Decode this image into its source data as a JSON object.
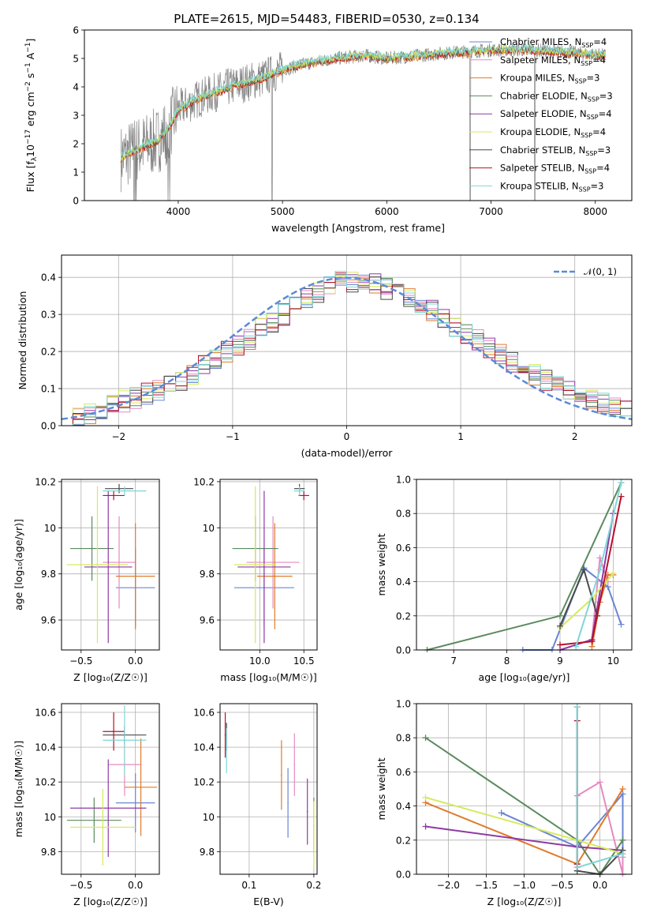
{
  "figure": {
    "title": "PLATE=2615, MJD=54483, FIBERID=0530, z=0.134"
  },
  "colors": {
    "Chabrier MILES": "#6a86d4",
    "Salpeter MILES": "#e58ac0",
    "Kroupa MILES": "#e07a2c",
    "Chabrier ELODIE": "#5b8a5e",
    "Salpeter ELODIE": "#8e3aa5",
    "Kroupa ELODIE": "#d6ea5a",
    "Chabrier STELIB": "#4a4a4a",
    "Salpeter STELIB": "#b5122b",
    "Kroupa STELIB": "#7fd6d8"
  },
  "chart_data": [
    {
      "id": "spectrum",
      "type": "line",
      "title": "PLATE=2615, MJD=54483, FIBERID=0530, z=0.134",
      "xlabel": "wavelength [Angstrom, rest frame]",
      "ylabel_parts": [
        "Flux [f",
        "λ",
        "10",
        "−17",
        " erg cm",
        "−2",
        " s",
        "−1",
        " A",
        "−1",
        "]"
      ],
      "xlim": [
        3100,
        8350
      ],
      "ylim": [
        0,
        6
      ],
      "xticks": [
        4000,
        5000,
        6000,
        7000,
        8000
      ],
      "yticks": [
        0,
        1,
        2,
        3,
        4,
        5,
        6
      ],
      "grid": false,
      "legend_position": "top-right",
      "legend": [
        {
          "name": "Chabrier MILES",
          "n": "4"
        },
        {
          "name": "Salpeter MILES",
          "n": "4"
        },
        {
          "name": "Kroupa MILES",
          "n": "3"
        },
        {
          "name": "Chabrier ELODIE",
          "n": "3"
        },
        {
          "name": "Salpeter ELODIE",
          "n": "4"
        },
        {
          "name": "Kroupa ELODIE",
          "n": "4"
        },
        {
          "name": "Chabrier STELIB",
          "n": "3"
        },
        {
          "name": "Salpeter STELIB",
          "n": "4"
        },
        {
          "name": "Kroupa STELIB",
          "n": "3"
        }
      ],
      "legend_nssp": "N",
      "legend_nssp_sub": "SSP",
      "data_envelope": {
        "x": [
          3450,
          3600,
          3800,
          3900,
          4000,
          4200,
          4500,
          4800,
          5000,
          5200,
          5500,
          5800,
          6000,
          6300,
          6600,
          7000,
          7400,
          7800,
          8100
        ],
        "y": [
          1.5,
          1.8,
          2.1,
          2.5,
          3.2,
          3.6,
          4.0,
          4.3,
          4.6,
          4.8,
          5.0,
          5.1,
          5.0,
          5.1,
          5.2,
          5.3,
          5.3,
          5.2,
          5.1
        ]
      }
    },
    {
      "id": "residuals",
      "type": "histogram",
      "xlabel": "(data-model)/error",
      "ylabel": "Normed distribution",
      "xlim": [
        -2.5,
        2.5
      ],
      "ylim": [
        0,
        0.46
      ],
      "xticks": [
        -2,
        -1,
        0,
        1,
        2
      ],
      "xtick_labels": [
        "−2",
        "−1",
        "0",
        "1",
        "2"
      ],
      "yticks": [
        0.0,
        0.1,
        0.2,
        0.3,
        0.4
      ],
      "ytick_labels": [
        "0.0",
        "0.1",
        "0.2",
        "0.3",
        "0.4"
      ],
      "grid": true,
      "bin_edges_start": -2.5,
      "bin_width": 0.1,
      "histogram_mean": [
        0.02,
        0.025,
        0.035,
        0.04,
        0.055,
        0.065,
        0.075,
        0.085,
        0.095,
        0.105,
        0.12,
        0.14,
        0.16,
        0.18,
        0.2,
        0.215,
        0.235,
        0.26,
        0.28,
        0.3,
        0.32,
        0.34,
        0.36,
        0.38,
        0.395,
        0.39,
        0.385,
        0.38,
        0.37,
        0.36,
        0.35,
        0.33,
        0.31,
        0.29,
        0.27,
        0.25,
        0.23,
        0.21,
        0.19,
        0.17,
        0.15,
        0.135,
        0.12,
        0.105,
        0.09,
        0.08,
        0.07,
        0.06,
        0.05,
        0.045
      ],
      "normal_curve_label": "𝒩(0, 1)",
      "normal_curve_color": "#5b8ad8"
    },
    {
      "id": "age-vs-Z",
      "type": "errorbar",
      "xlabel": "Z [log₁₀(Z/Z☉)]",
      "ylabel": "age  [log₁₀(age/yr)]",
      "xlim": [
        -0.68,
        0.22
      ],
      "ylim": [
        9.47,
        10.21
      ],
      "xticks": [
        -0.5,
        0.0
      ],
      "xtick_labels": [
        "−0.5",
        "0.0"
      ],
      "yticks": [
        9.6,
        9.8,
        10.0,
        10.2
      ],
      "grid": true,
      "points": [
        {
          "model": "Chabrier MILES",
          "x": 0.0,
          "y": 9.74,
          "xerr": 0.18,
          "yerr": 0.17
        },
        {
          "model": "Salpeter MILES",
          "x": -0.15,
          "y": 9.85,
          "xerr": 0.15,
          "yerr": 0.2
        },
        {
          "model": "Kroupa MILES",
          "x": 0.0,
          "y": 9.79,
          "xerr": 0.18,
          "yerr": 0.23
        },
        {
          "model": "Chabrier ELODIE",
          "x": -0.4,
          "y": 9.91,
          "xerr": 0.2,
          "yerr": 0.14
        },
        {
          "model": "Salpeter ELODIE",
          "x": -0.25,
          "y": 9.83,
          "xerr": 0.22,
          "yerr": 0.33
        },
        {
          "model": "Kroupa ELODIE",
          "x": -0.35,
          "y": 9.84,
          "xerr": 0.28,
          "yerr": 0.34
        },
        {
          "model": "Chabrier STELIB",
          "x": -0.15,
          "y": 10.17,
          "xerr": 0.13,
          "yerr": 0.02
        },
        {
          "model": "Salpeter STELIB",
          "x": -0.2,
          "y": 10.14,
          "xerr": 0.1,
          "yerr": 0.02
        },
        {
          "model": "Kroupa STELIB",
          "x": -0.1,
          "y": 10.16,
          "xerr": 0.2,
          "yerr": 0.02
        }
      ]
    },
    {
      "id": "age-vs-mass",
      "type": "errorbar",
      "xlabel": "mass [log₁₀(M/M☉)]",
      "xlim": [
        9.55,
        10.65
      ],
      "ylim": [
        9.47,
        10.21
      ],
      "xticks": [
        10.0,
        10.5
      ],
      "xtick_labels": [
        "10.0",
        "10.5"
      ],
      "yticks": [
        9.6,
        9.8,
        10.0,
        10.2
      ],
      "grid": true,
      "points": [
        {
          "model": "Chabrier MILES",
          "x": 10.05,
          "y": 9.74,
          "xerr": 0.34,
          "yerr": 0.17
        },
        {
          "model": "Salpeter MILES",
          "x": 10.15,
          "y": 9.85,
          "xerr": 0.3,
          "yerr": 0.2
        },
        {
          "model": "Kroupa MILES",
          "x": 10.17,
          "y": 9.79,
          "xerr": 0.2,
          "yerr": 0.23
        },
        {
          "model": "Chabrier ELODIE",
          "x": 9.95,
          "y": 9.91,
          "xerr": 0.26,
          "yerr": 0.14
        },
        {
          "model": "Salpeter ELODIE",
          "x": 10.05,
          "y": 9.83,
          "xerr": 0.3,
          "yerr": 0.33
        },
        {
          "model": "Kroupa ELODIE",
          "x": 9.95,
          "y": 9.84,
          "xerr": 0.24,
          "yerr": 0.34
        },
        {
          "model": "Chabrier STELIB",
          "x": 10.45,
          "y": 10.17,
          "xerr": 0.06,
          "yerr": 0.02
        },
        {
          "model": "Salpeter STELIB",
          "x": 10.5,
          "y": 10.14,
          "xerr": 0.06,
          "yerr": 0.02
        },
        {
          "model": "Kroupa STELIB",
          "x": 10.45,
          "y": 10.16,
          "xerr": 0.06,
          "yerr": 0.02
        }
      ]
    },
    {
      "id": "massweight-vs-age",
      "type": "line",
      "xlabel": "age  [log₁₀(age/yr)]",
      "ylabel": "mass weight",
      "xlim": [
        6.3,
        10.35
      ],
      "ylim": [
        0,
        1
      ],
      "xticks": [
        7,
        8,
        9,
        10
      ],
      "yticks": [
        0.0,
        0.2,
        0.4,
        0.6,
        0.8,
        1.0
      ],
      "ytick_labels": [
        "0.0",
        "0.2",
        "0.4",
        "0.6",
        "0.8",
        "1.0"
      ],
      "grid": true,
      "series": [
        {
          "model": "Chabrier MILES",
          "x": [
            8.3,
            8.85,
            9.45,
            9.9,
            10.15
          ],
          "y": [
            0.0,
            0.0,
            0.48,
            0.37,
            0.15
          ]
        },
        {
          "model": "Salpeter MILES",
          "x": [
            9.6,
            9.75,
            9.9
          ],
          "y": [
            0.06,
            0.54,
            0.4
          ]
        },
        {
          "model": "Kroupa MILES",
          "x": [
            9.6,
            9.75,
            9.9,
            10.0
          ],
          "y": [
            0.02,
            0.28,
            0.44,
            0.44
          ]
        },
        {
          "model": "Chabrier ELODIE",
          "x": [
            6.5,
            9.0,
            10.15
          ],
          "y": [
            0.0,
            0.2,
            0.98
          ]
        },
        {
          "model": "Salpeter ELODIE",
          "x": [
            9.0,
            9.6,
            10.0
          ],
          "y": [
            0.0,
            0.06,
            0.8
          ]
        },
        {
          "model": "Kroupa ELODIE",
          "x": [
            9.0,
            9.6,
            10.0
          ],
          "y": [
            0.13,
            0.3,
            0.45
          ]
        },
        {
          "model": "Chabrier STELIB",
          "x": [
            9.0,
            9.45,
            9.7
          ],
          "y": [
            0.14,
            0.47,
            0.2
          ]
        },
        {
          "model": "Salpeter STELIB",
          "x": [
            9.0,
            9.6,
            10.15
          ],
          "y": [
            0.03,
            0.05,
            0.9
          ]
        },
        {
          "model": "Kroupa STELIB",
          "x": [
            9.3,
            9.75,
            10.15
          ],
          "y": [
            0.02,
            0.47,
            0.98
          ]
        }
      ]
    },
    {
      "id": "mass-vs-Z",
      "type": "errorbar",
      "xlabel": "Z [log₁₀(Z/Z☉)]",
      "ylabel": "mass [log₁₀(M/M☉)]",
      "xlim": [
        -0.68,
        0.22
      ],
      "ylim": [
        9.67,
        10.65
      ],
      "xticks": [
        -0.5,
        0.0
      ],
      "xtick_labels": [
        "−0.5",
        "0.0"
      ],
      "yticks": [
        9.8,
        10.0,
        10.2,
        10.4,
        10.6
      ],
      "grid": true,
      "points": [
        {
          "model": "Chabrier MILES",
          "x": 0.0,
          "y": 10.08,
          "xerr": 0.18,
          "yerr": 0.17
        },
        {
          "model": "Salpeter MILES",
          "x": -0.1,
          "y": 10.3,
          "xerr": 0.15,
          "yerr": 0.18
        },
        {
          "model": "Kroupa MILES",
          "x": 0.05,
          "y": 10.17,
          "xerr": 0.15,
          "yerr": 0.28
        },
        {
          "model": "Chabrier ELODIE",
          "x": -0.38,
          "y": 9.98,
          "xerr": 0.25,
          "yerr": 0.13
        },
        {
          "model": "Salpeter ELODIE",
          "x": -0.25,
          "y": 10.05,
          "xerr": 0.35,
          "yerr": 0.28
        },
        {
          "model": "Kroupa ELODIE",
          "x": -0.3,
          "y": 9.94,
          "xerr": 0.3,
          "yerr": 0.22
        },
        {
          "model": "Chabrier STELIB",
          "x": -0.1,
          "y": 10.47,
          "xerr": 0.2,
          "yerr": 0.05
        },
        {
          "model": "Salpeter STELIB",
          "x": -0.2,
          "y": 10.49,
          "xerr": 0.1,
          "yerr": 0.11
        },
        {
          "model": "Kroupa STELIB",
          "x": -0.1,
          "y": 10.44,
          "xerr": 0.2,
          "yerr": 0.2
        }
      ]
    },
    {
      "id": "mass-vs-EBV",
      "type": "errorbar",
      "xlabel": "E(B-V)",
      "xlim": [
        0.055,
        0.205
      ],
      "ylim": [
        9.67,
        10.65
      ],
      "xticks": [
        0.1,
        0.2
      ],
      "xtick_labels": [
        "0.1",
        "0.2"
      ],
      "yticks": [
        9.8,
        10.0,
        10.2,
        10.4,
        10.6
      ],
      "grid": true,
      "points": [
        {
          "model": "Chabrier MILES",
          "x": 0.16,
          "y": 10.08,
          "xerr": 0.0,
          "yerr": 0.2
        },
        {
          "model": "Salpeter MILES",
          "x": 0.17,
          "y": 10.3,
          "xerr": 0.0,
          "yerr": 0.18
        },
        {
          "model": "Kroupa MILES",
          "x": 0.15,
          "y": 10.24,
          "xerr": 0.0,
          "yerr": 0.2
        },
        {
          "model": "Chabrier ELODIE",
          "x": 0.2,
          "y": 9.95,
          "xerr": 0.0,
          "yerr": 0.16
        },
        {
          "model": "Salpeter ELODIE",
          "x": 0.19,
          "y": 10.03,
          "xerr": 0.0,
          "yerr": 0.19
        },
        {
          "model": "Kroupa ELODIE",
          "x": 0.2,
          "y": 9.9,
          "xerr": 0.0,
          "yerr": 0.19
        },
        {
          "model": "Chabrier STELIB",
          "x": 0.065,
          "y": 10.46,
          "xerr": 0.0,
          "yerr": 0.08
        },
        {
          "model": "Salpeter STELIB",
          "x": 0.063,
          "y": 10.47,
          "xerr": 0.0,
          "yerr": 0.13
        },
        {
          "model": "Kroupa STELIB",
          "x": 0.065,
          "y": 10.38,
          "xerr": 0.0,
          "yerr": 0.13
        }
      ]
    },
    {
      "id": "massweight-vs-Z",
      "type": "line",
      "xlabel": "Z [log₁₀(Z/Z☉)]",
      "ylabel": "mass weight",
      "xlim": [
        -2.42,
        0.42
      ],
      "ylim": [
        0,
        1
      ],
      "xticks": [
        -2.0,
        -1.5,
        -1.0,
        -0.5,
        0.0
      ],
      "xtick_labels": [
        "−2.0",
        "−1.5",
        "−1.0",
        "−0.5",
        "0.0"
      ],
      "yticks": [
        0.0,
        0.2,
        0.4,
        0.6,
        0.8,
        1.0
      ],
      "ytick_labels": [
        "0.0",
        "0.2",
        "0.4",
        "0.6",
        "0.8",
        "1.0"
      ],
      "grid": true,
      "series": [
        {
          "model": "Chabrier MILES",
          "x": [
            -1.3,
            -0.3,
            0.3,
            0.3
          ],
          "y": [
            0.36,
            0.16,
            0.47,
            0.0
          ]
        },
        {
          "model": "Salpeter MILES",
          "x": [
            -0.3,
            0.0,
            0.3,
            0.3
          ],
          "y": [
            0.46,
            0.54,
            0.0,
            0.1
          ]
        },
        {
          "model": "Kroupa MILES",
          "x": [
            -2.3,
            -0.3,
            0.3
          ],
          "y": [
            0.42,
            0.06,
            0.5
          ]
        },
        {
          "model": "Chabrier ELODIE",
          "x": [
            -2.3,
            -0.3,
            0.0,
            0.3
          ],
          "y": [
            0.8,
            0.2,
            0.0,
            0.2
          ]
        },
        {
          "model": "Salpeter ELODIE",
          "x": [
            -2.3,
            -0.3,
            0.3
          ],
          "y": [
            0.28,
            0.16,
            0.14
          ]
        },
        {
          "model": "Kroupa ELODIE",
          "x": [
            -2.3,
            -0.3,
            0.3
          ],
          "y": [
            0.45,
            0.2,
            0.12
          ]
        },
        {
          "model": "Chabrier STELIB",
          "x": [
            -0.3,
            -0.3,
            0.0,
            0.3
          ],
          "y": [
            0.98,
            0.02,
            0.0,
            0.14
          ]
        },
        {
          "model": "Salpeter STELIB",
          "x": [
            -0.3,
            -0.3,
            -0.3
          ],
          "y": [
            0.9,
            0.04,
            0.06
          ]
        },
        {
          "model": "Kroupa STELIB",
          "x": [
            -0.3,
            -0.3,
            0.3
          ],
          "y": [
            0.98,
            0.04,
            0.12
          ]
        }
      ]
    }
  ]
}
